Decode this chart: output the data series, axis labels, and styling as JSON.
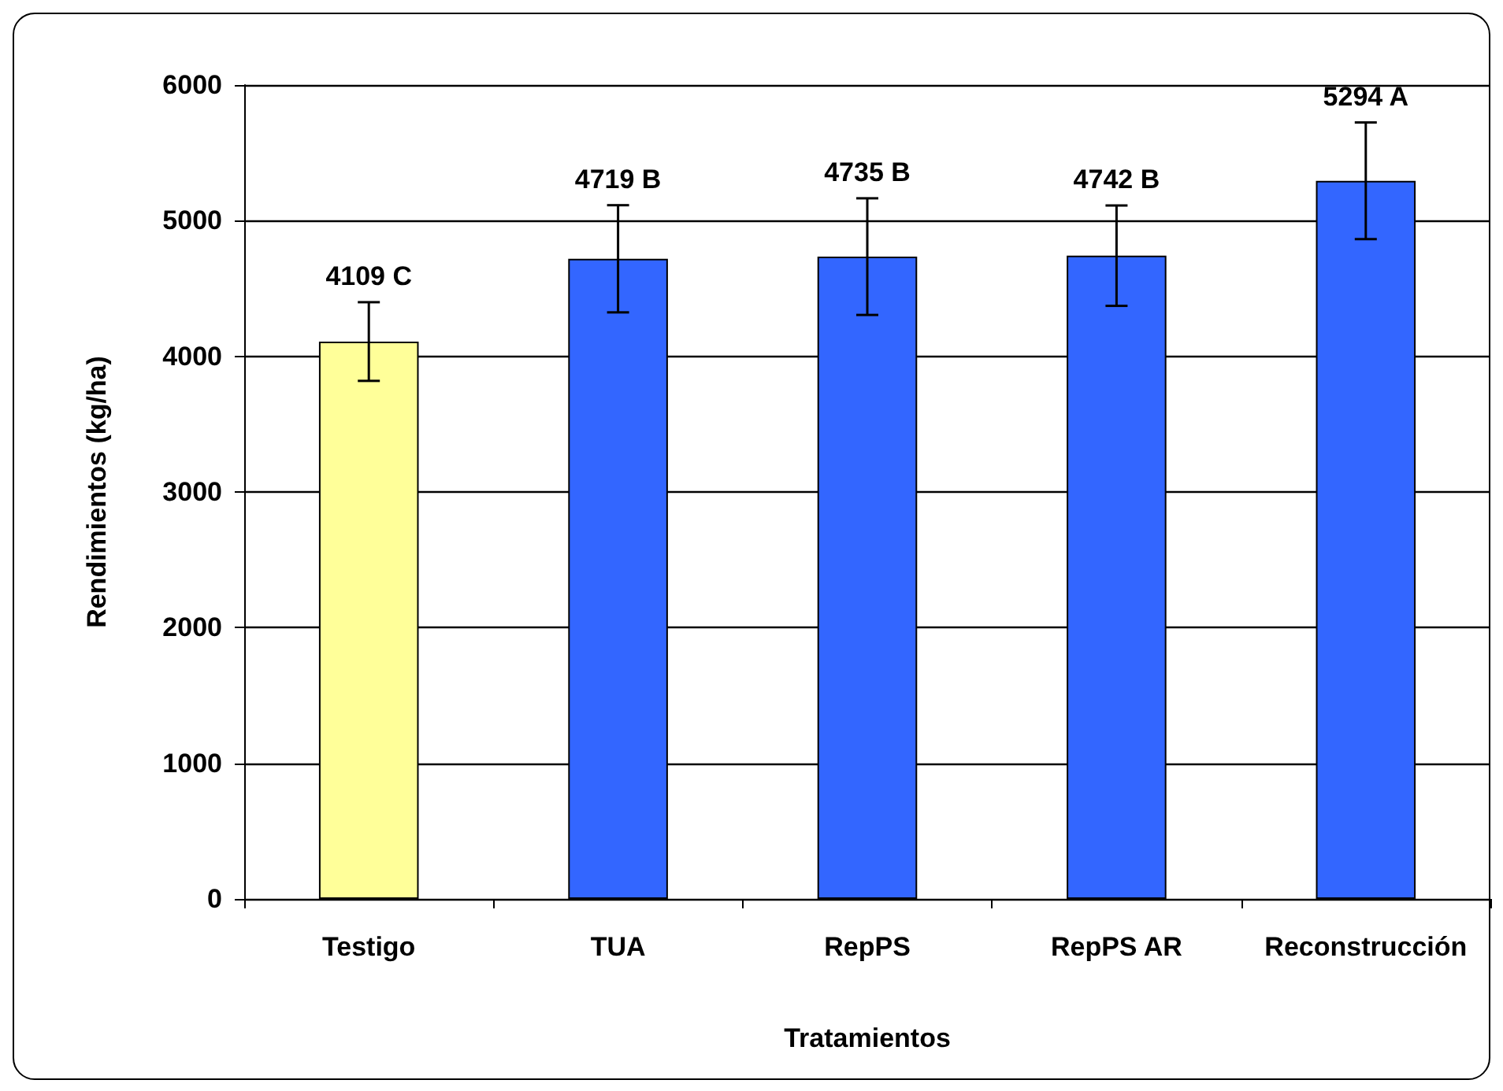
{
  "chart_data": {
    "type": "bar",
    "xlabel": "Tratamientos",
    "ylabel": "Rendimientos (kg/ha)",
    "categories": [
      "Testigo",
      "TUA",
      "RepPS",
      "RepPS AR",
      "Reconstrucción"
    ],
    "values": [
      4109,
      4719,
      4735,
      4742,
      5294
    ],
    "colors": [
      "#ffff99",
      "#3366ff",
      "#3366ff",
      "#3366ff",
      "#3366ff"
    ],
    "errors": [
      290,
      395,
      430,
      370,
      430
    ],
    "value_labels": [
      "4109 C",
      "4719 B",
      "4735 B",
      "4742 B",
      "5294 A"
    ],
    "ylim": [
      0,
      6000
    ],
    "yticks": [
      0,
      1000,
      2000,
      3000,
      4000,
      5000,
      6000
    ],
    "grid": "y"
  }
}
